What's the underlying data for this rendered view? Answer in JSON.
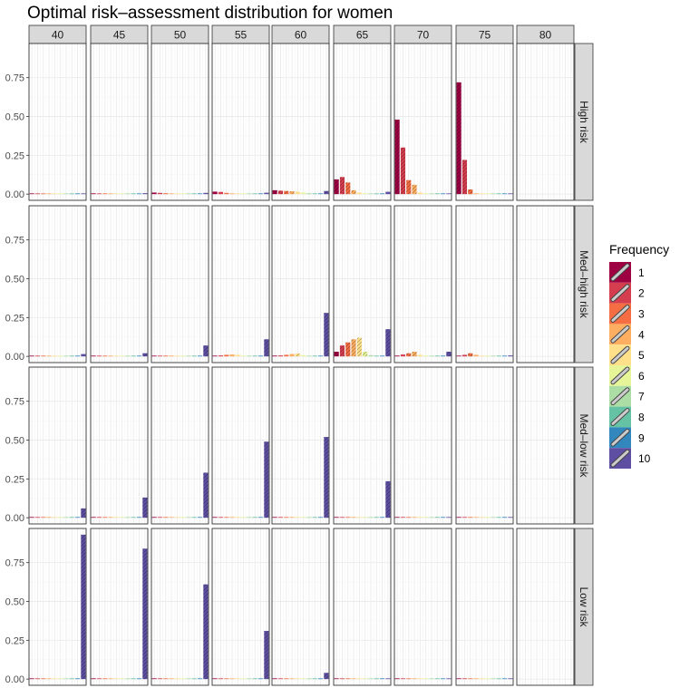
{
  "chart_data": {
    "type": "bar",
    "title": "Optimal risk–assessment distribution for women",
    "columns": [
      "40",
      "45",
      "50",
      "55",
      "60",
      "65",
      "70",
      "75",
      "80"
    ],
    "rows": [
      "High risk",
      "Med–high risk",
      "Med–low risk",
      "Low risk"
    ],
    "categories": [
      "1",
      "2",
      "3",
      "4",
      "5",
      "6",
      "7",
      "8",
      "9",
      "10"
    ],
    "ylim": [
      -0.04,
      0.97
    ],
    "yticks": [
      0.0,
      0.25,
      0.5,
      0.75
    ],
    "ytick_labels": [
      "0.00",
      "0.25",
      "0.50",
      "0.75"
    ],
    "grid": true,
    "legend": {
      "title": "Frequency",
      "position": "right",
      "labels": [
        "1",
        "2",
        "3",
        "4",
        "5",
        "6",
        "7",
        "8",
        "9",
        "10"
      ]
    },
    "colors": [
      "#9E0142",
      "#D53E4F",
      "#F46D43",
      "#FDAE61",
      "#FEE08B",
      "#E6F598",
      "#ABDDA4",
      "#66C2A5",
      "#3288BD",
      "#5E4FA2"
    ],
    "panels": [
      {
        "row": "High risk",
        "col": "40",
        "values": [
          0.004,
          0.004,
          0.003,
          0.003,
          0.002,
          0.002,
          0.002,
          0.002,
          0.002,
          0.004
        ]
      },
      {
        "row": "High risk",
        "col": "45",
        "values": [
          0.005,
          0.004,
          0.003,
          0.003,
          0.002,
          0.002,
          0.002,
          0.002,
          0.002,
          0.006
        ]
      },
      {
        "row": "High risk",
        "col": "50",
        "values": [
          0.01,
          0.008,
          0.006,
          0.004,
          0.003,
          0.002,
          0.002,
          0.002,
          0.002,
          0.008
        ]
      },
      {
        "row": "High risk",
        "col": "55",
        "values": [
          0.016,
          0.014,
          0.008,
          0.005,
          0.003,
          0.002,
          0.002,
          0.002,
          0.002,
          0.009
        ]
      },
      {
        "row": "High risk",
        "col": "60",
        "values": [
          0.025,
          0.022,
          0.02,
          0.018,
          0.015,
          0.01,
          0.006,
          0.004,
          0.003,
          0.02
        ]
      },
      {
        "row": "High risk",
        "col": "65",
        "values": [
          0.095,
          0.11,
          0.075,
          0.025,
          0.01,
          0.005,
          0.003,
          0.002,
          0.002,
          0.015
        ]
      },
      {
        "row": "High risk",
        "col": "70",
        "values": [
          0.48,
          0.3,
          0.09,
          0.06,
          0.01,
          0.005,
          0.003,
          0.002,
          0.002,
          0.004
        ]
      },
      {
        "row": "High risk",
        "col": "75",
        "values": [
          0.72,
          0.22,
          0.03,
          0.005,
          0.003,
          0.002,
          0.002,
          0.002,
          0.002,
          0.003
        ]
      },
      {
        "row": "High risk",
        "col": "80",
        "values": [
          0,
          0,
          0,
          0,
          0,
          0,
          0,
          0,
          0,
          0
        ]
      },
      {
        "row": "Med–high risk",
        "col": "40",
        "values": [
          0.003,
          0.003,
          0.003,
          0.003,
          0.002,
          0.002,
          0.002,
          0.002,
          0.002,
          0.015
        ]
      },
      {
        "row": "Med–high risk",
        "col": "45",
        "values": [
          0.003,
          0.003,
          0.003,
          0.003,
          0.002,
          0.002,
          0.002,
          0.002,
          0.002,
          0.02
        ]
      },
      {
        "row": "Med–high risk",
        "col": "50",
        "values": [
          0.004,
          0.004,
          0.005,
          0.005,
          0.004,
          0.002,
          0.002,
          0.002,
          0.002,
          0.07
        ]
      },
      {
        "row": "Med–high risk",
        "col": "55",
        "values": [
          0.004,
          0.006,
          0.01,
          0.012,
          0.01,
          0.004,
          0.002,
          0.002,
          0.002,
          0.11
        ]
      },
      {
        "row": "Med–high risk",
        "col": "60",
        "values": [
          0.005,
          0.006,
          0.01,
          0.015,
          0.018,
          0.008,
          0.003,
          0.002,
          0.002,
          0.28
        ]
      },
      {
        "row": "Med–high risk",
        "col": "65",
        "values": [
          0.03,
          0.07,
          0.09,
          0.11,
          0.12,
          0.03,
          0.008,
          0.004,
          0.003,
          0.175
        ]
      },
      {
        "row": "Med–high risk",
        "col": "70",
        "values": [
          0.005,
          0.012,
          0.02,
          0.03,
          0.01,
          0.005,
          0.003,
          0.002,
          0.002,
          0.03
        ]
      },
      {
        "row": "Med–high risk",
        "col": "75",
        "values": [
          0.004,
          0.01,
          0.02,
          0.01,
          0.004,
          0.002,
          0.002,
          0.002,
          0.002,
          0.006
        ]
      },
      {
        "row": "Med–high risk",
        "col": "80",
        "values": [
          0,
          0,
          0,
          0,
          0,
          0,
          0,
          0,
          0,
          0
        ]
      },
      {
        "row": "Med–low risk",
        "col": "40",
        "values": [
          0.002,
          0.002,
          0.002,
          0.002,
          0.002,
          0.002,
          0.002,
          0.002,
          0.002,
          0.06
        ]
      },
      {
        "row": "Med–low risk",
        "col": "45",
        "values": [
          0.002,
          0.002,
          0.002,
          0.002,
          0.002,
          0.002,
          0.002,
          0.002,
          0.002,
          0.13
        ]
      },
      {
        "row": "Med–low risk",
        "col": "50",
        "values": [
          0.002,
          0.002,
          0.002,
          0.002,
          0.002,
          0.002,
          0.002,
          0.002,
          0.002,
          0.29
        ]
      },
      {
        "row": "Med–low risk",
        "col": "55",
        "values": [
          0.002,
          0.002,
          0.002,
          0.002,
          0.002,
          0.002,
          0.002,
          0.002,
          0.002,
          0.49
        ]
      },
      {
        "row": "Med–low risk",
        "col": "60",
        "values": [
          0.002,
          0.002,
          0.002,
          0.002,
          0.002,
          0.002,
          0.002,
          0.002,
          0.002,
          0.52
        ]
      },
      {
        "row": "Med–low risk",
        "col": "65",
        "values": [
          0.002,
          0.002,
          0.002,
          0.002,
          0.002,
          0.002,
          0.002,
          0.002,
          0.002,
          0.235
        ]
      },
      {
        "row": "Med–low risk",
        "col": "70",
        "values": [
          0.002,
          0.002,
          0.002,
          0.002,
          0.002,
          0.002,
          0.002,
          0.002,
          0.002,
          0.002
        ]
      },
      {
        "row": "Med–low risk",
        "col": "75",
        "values": [
          0.002,
          0.002,
          0.002,
          0.002,
          0.002,
          0.002,
          0.002,
          0.002,
          0.002,
          0.002
        ]
      },
      {
        "row": "Med–low risk",
        "col": "80",
        "values": [
          0,
          0,
          0,
          0,
          0,
          0,
          0,
          0,
          0,
          0
        ]
      },
      {
        "row": "Low risk",
        "col": "40",
        "values": [
          0.002,
          0.002,
          0.002,
          0.002,
          0.002,
          0.002,
          0.002,
          0.002,
          0.002,
          0.93
        ]
      },
      {
        "row": "Low risk",
        "col": "45",
        "values": [
          0.002,
          0.002,
          0.002,
          0.002,
          0.002,
          0.002,
          0.002,
          0.002,
          0.002,
          0.84
        ]
      },
      {
        "row": "Low risk",
        "col": "50",
        "values": [
          0.002,
          0.002,
          0.002,
          0.002,
          0.002,
          0.002,
          0.002,
          0.002,
          0.002,
          0.61
        ]
      },
      {
        "row": "Low risk",
        "col": "55",
        "values": [
          0.002,
          0.002,
          0.002,
          0.002,
          0.002,
          0.002,
          0.002,
          0.002,
          0.002,
          0.31
        ]
      },
      {
        "row": "Low risk",
        "col": "60",
        "values": [
          0.002,
          0.002,
          0.002,
          0.002,
          0.002,
          0.002,
          0.002,
          0.002,
          0.002,
          0.04
        ]
      },
      {
        "row": "Low risk",
        "col": "65",
        "values": [
          0.002,
          0.002,
          0.002,
          0.002,
          0.002,
          0.002,
          0.002,
          0.002,
          0.002,
          0.002
        ]
      },
      {
        "row": "Low risk",
        "col": "70",
        "values": [
          0.002,
          0.002,
          0.002,
          0.002,
          0.002,
          0.002,
          0.002,
          0.002,
          0.002,
          0.002
        ]
      },
      {
        "row": "Low risk",
        "col": "75",
        "values": [
          0.002,
          0.002,
          0.002,
          0.002,
          0.002,
          0.002,
          0.002,
          0.002,
          0.002,
          0.002
        ]
      },
      {
        "row": "Low risk",
        "col": "80",
        "values": [
          0,
          0,
          0,
          0,
          0,
          0,
          0,
          0,
          0,
          0
        ]
      }
    ]
  }
}
